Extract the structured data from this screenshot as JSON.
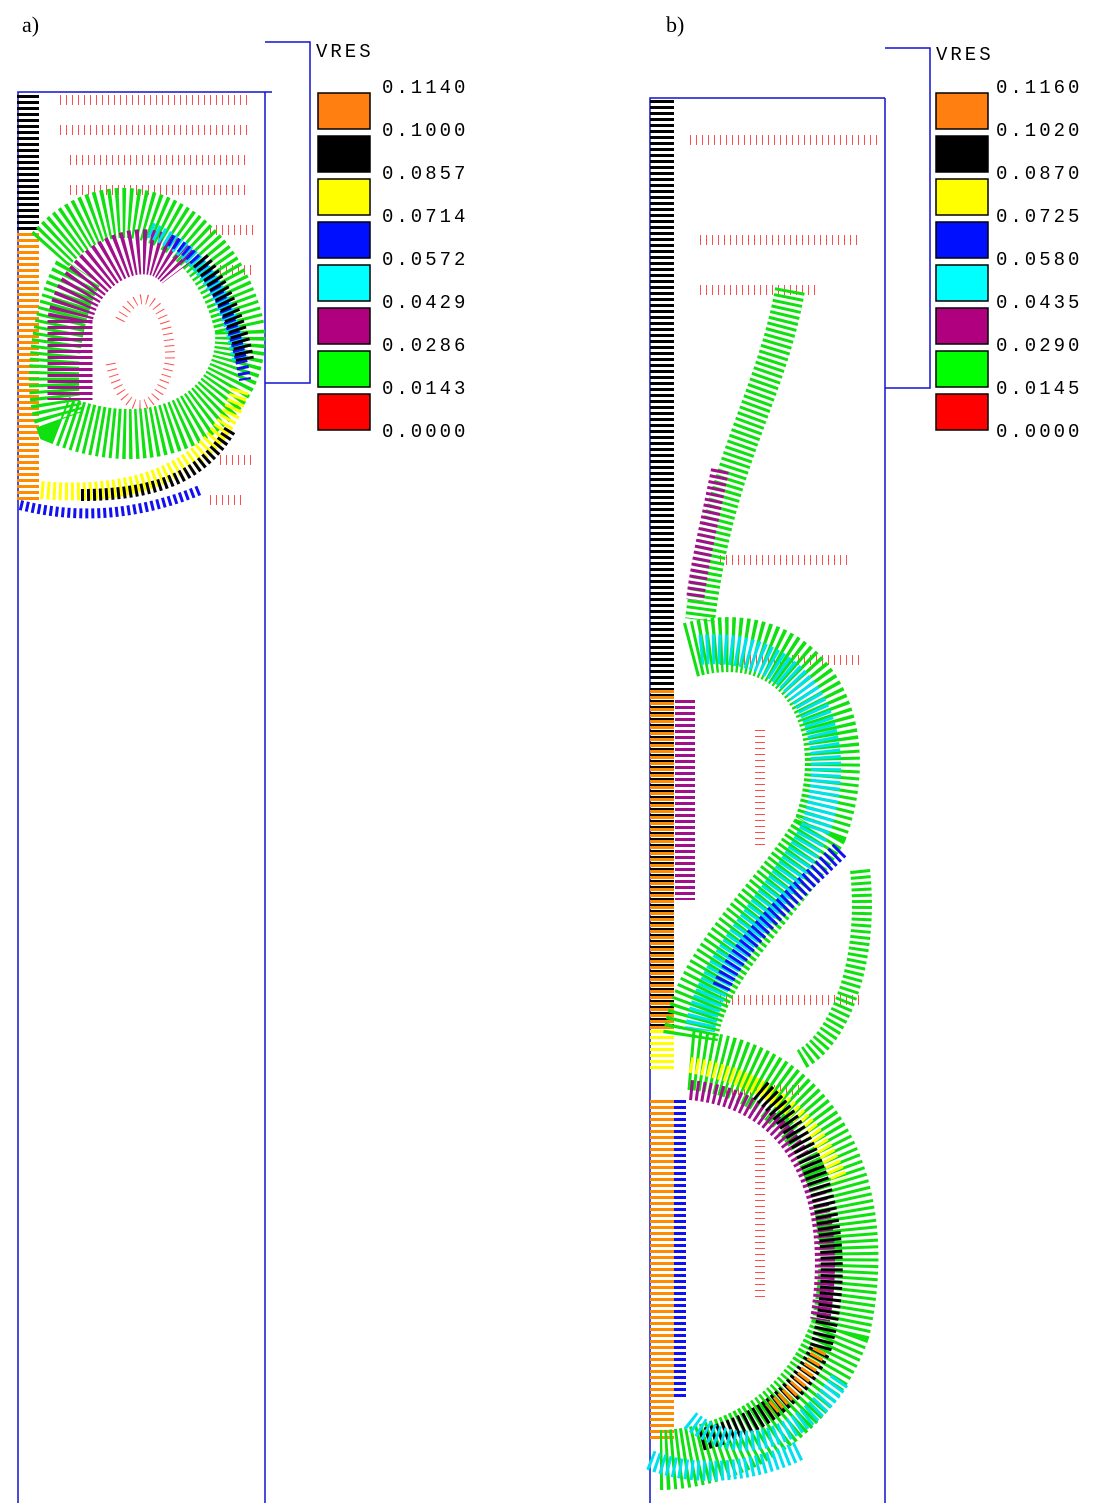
{
  "panels": [
    {
      "label": "a)",
      "legend": {
        "title": "VRES",
        "levels": [
          "0.1140",
          "0.1000",
          "0.0857",
          "0.0714",
          "0.0572",
          "0.0429",
          "0.0286",
          "0.0143",
          "0.0000"
        ]
      }
    },
    {
      "label": "b)",
      "legend": {
        "title": "VRES",
        "levels": [
          "0.1160",
          "0.1020",
          "0.0870",
          "0.0725",
          "0.0580",
          "0.0435",
          "0.0290",
          "0.0145",
          "0.0000"
        ]
      }
    }
  ]
}
